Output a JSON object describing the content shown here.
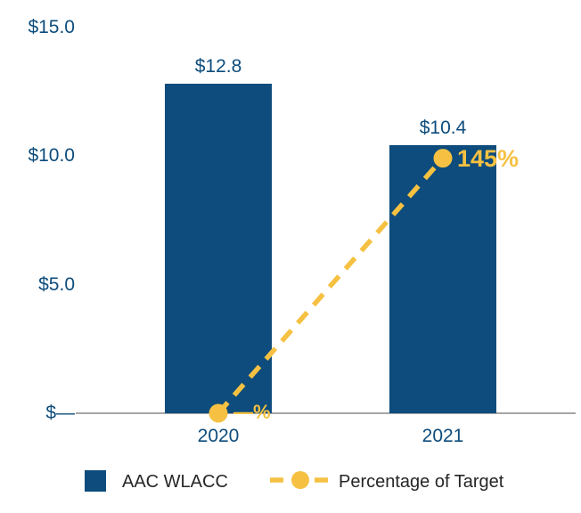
{
  "chart_data": {
    "type": "bar",
    "subtype": "bar-with-line-overlay",
    "categories": [
      "2020",
      "2021"
    ],
    "series": [
      {
        "name": "AAC WLACC",
        "type": "bar",
        "values": [
          12.8,
          10.4
        ],
        "value_labels": [
          "$12.8",
          "$10.4"
        ],
        "color": "#0D4C7C"
      },
      {
        "name": "Percentage of Target",
        "type": "line",
        "style": "dashed-with-circle-markers",
        "values": [
          0,
          145
        ],
        "point_labels": [
          "—%",
          "145%"
        ],
        "color": "#F6C142"
      }
    ],
    "yticks": [
      {
        "value": 15,
        "label": "$15.0"
      },
      {
        "value": 10,
        "label": "$10.0"
      },
      {
        "value": 5,
        "label": "$5.0"
      },
      {
        "value": 0,
        "label": "$—"
      }
    ],
    "ylim": [
      0,
      15
    ],
    "grid": false,
    "legend_position": "bottom"
  },
  "legend": {
    "items": [
      {
        "label": "AAC WLACC",
        "swatch": "blue-square"
      },
      {
        "label": "Percentage of Target",
        "swatch": "yellow-dashed-line-with-dot"
      }
    ]
  },
  "colors": {
    "bar": "#0D4C7C",
    "line": "#F6C142",
    "axis_line": "#A6A6A6",
    "value_text": "#0D4C7C",
    "legend_text": "#262626",
    "background": "#FFFFFF"
  }
}
